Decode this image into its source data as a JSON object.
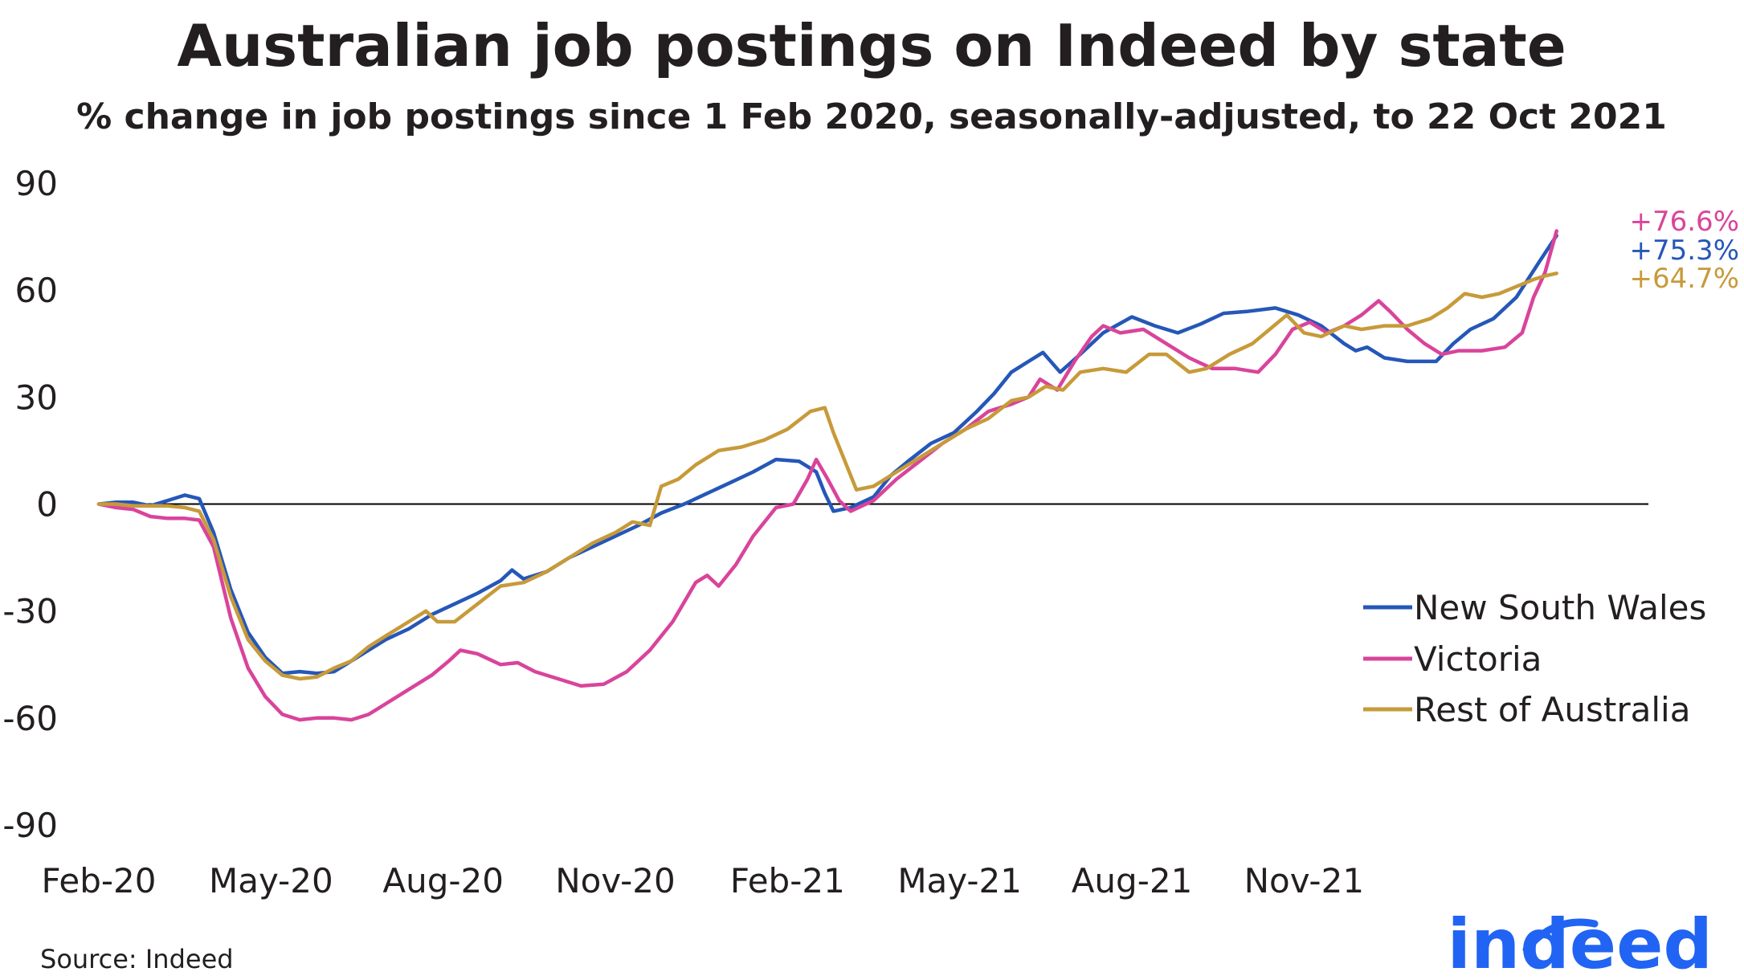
{
  "chart_data": {
    "type": "line",
    "title": "Australian job postings on Indeed by state",
    "subtitle": "% change in job postings since 1 Feb 2020, seasonally-adjusted, to 22 Oct 2021",
    "xlabel": "",
    "ylabel": "",
    "ylim": [
      -90,
      90
    ],
    "yticks": [
      90,
      60,
      30,
      0,
      -30,
      -60,
      -90
    ],
    "xticks": [
      "Feb-20",
      "May-20",
      "Aug-20",
      "Nov-20",
      "Feb-21",
      "May-21",
      "Aug-21",
      "Nov-21"
    ],
    "x_unit": "months since Feb-20",
    "legend_position": "lower-right",
    "series": [
      {
        "name": "New South Wales",
        "color": "#2557b8",
        "end_label": "+75.3%",
        "points": [
          [
            0,
            0
          ],
          [
            0.3,
            0.5
          ],
          [
            0.6,
            0.5
          ],
          [
            0.9,
            -0.5
          ],
          [
            1.2,
            1
          ],
          [
            1.5,
            2.5
          ],
          [
            1.75,
            1.5
          ],
          [
            2.0,
            -8
          ],
          [
            2.3,
            -24
          ],
          [
            2.6,
            -36
          ],
          [
            2.9,
            -43
          ],
          [
            3.2,
            -47.5
          ],
          [
            3.5,
            -47
          ],
          [
            3.8,
            -47.5
          ],
          [
            4.1,
            -47
          ],
          [
            4.4,
            -44
          ],
          [
            4.7,
            -41
          ],
          [
            5.0,
            -38
          ],
          [
            5.4,
            -35
          ],
          [
            5.8,
            -31
          ],
          [
            6.2,
            -28
          ],
          [
            6.6,
            -25
          ],
          [
            7.0,
            -21.5
          ],
          [
            7.2,
            -18.5
          ],
          [
            7.4,
            -21
          ],
          [
            7.8,
            -19
          ],
          [
            8.2,
            -15
          ],
          [
            8.6,
            -12
          ],
          [
            9.0,
            -9
          ],
          [
            9.4,
            -6
          ],
          [
            9.8,
            -2.5
          ],
          [
            10.2,
            0
          ],
          [
            10.6,
            3
          ],
          [
            11.0,
            6
          ],
          [
            11.4,
            9
          ],
          [
            11.8,
            12.5
          ],
          [
            12.2,
            12
          ],
          [
            12.5,
            9
          ],
          [
            12.65,
            3
          ],
          [
            12.8,
            -2
          ],
          [
            13.1,
            -1
          ],
          [
            13.5,
            2
          ],
          [
            13.8,
            8
          ],
          [
            14.1,
            12
          ],
          [
            14.5,
            17
          ],
          [
            14.9,
            20
          ],
          [
            15.3,
            26
          ],
          [
            15.6,
            31
          ],
          [
            15.9,
            37
          ],
          [
            16.2,
            40
          ],
          [
            16.45,
            42.5
          ],
          [
            16.75,
            37
          ],
          [
            17.1,
            42
          ],
          [
            17.5,
            48
          ],
          [
            18.0,
            52.5
          ],
          [
            18.4,
            50
          ],
          [
            18.8,
            48
          ],
          [
            19.2,
            50.5
          ],
          [
            19.6,
            53.5
          ],
          [
            20.0,
            54
          ],
          [
            20.5,
            55
          ],
          [
            20.9,
            53
          ],
          [
            21.3,
            50
          ],
          [
            21.7,
            45
          ],
          [
            21.9,
            43
          ],
          [
            22.1,
            44
          ],
          [
            22.4,
            41
          ],
          [
            22.8,
            40
          ],
          [
            23.3,
            40
          ],
          [
            23.6,
            45
          ],
          [
            23.9,
            49
          ],
          [
            24.3,
            52
          ],
          [
            24.7,
            58
          ],
          [
            25.1,
            68
          ],
          [
            25.4,
            75.3
          ]
        ]
      },
      {
        "name": "Victoria",
        "color": "#d9449b",
        "end_label": "+76.6%",
        "points": [
          [
            0,
            0
          ],
          [
            0.3,
            -1
          ],
          [
            0.6,
            -1.5
          ],
          [
            0.9,
            -3.5
          ],
          [
            1.2,
            -4
          ],
          [
            1.5,
            -4
          ],
          [
            1.75,
            -4.5
          ],
          [
            2.0,
            -12
          ],
          [
            2.3,
            -32
          ],
          [
            2.6,
            -46
          ],
          [
            2.9,
            -54
          ],
          [
            3.2,
            -59
          ],
          [
            3.5,
            -60.5
          ],
          [
            3.8,
            -60
          ],
          [
            4.1,
            -60
          ],
          [
            4.4,
            -60.5
          ],
          [
            4.7,
            -59
          ],
          [
            5.0,
            -56
          ],
          [
            5.4,
            -52
          ],
          [
            5.8,
            -48
          ],
          [
            6.1,
            -44
          ],
          [
            6.3,
            -41
          ],
          [
            6.6,
            -42
          ],
          [
            7.0,
            -45
          ],
          [
            7.3,
            -44.5
          ],
          [
            7.6,
            -47
          ],
          [
            8.0,
            -49
          ],
          [
            8.4,
            -51
          ],
          [
            8.8,
            -50.5
          ],
          [
            9.2,
            -47
          ],
          [
            9.6,
            -41
          ],
          [
            10.0,
            -33
          ],
          [
            10.4,
            -22
          ],
          [
            10.6,
            -20
          ],
          [
            10.8,
            -23
          ],
          [
            11.1,
            -17
          ],
          [
            11.4,
            -9
          ],
          [
            11.8,
            -1
          ],
          [
            12.1,
            0
          ],
          [
            12.35,
            7
          ],
          [
            12.5,
            12.5
          ],
          [
            12.7,
            7
          ],
          [
            12.9,
            1
          ],
          [
            13.1,
            -2
          ],
          [
            13.5,
            1
          ],
          [
            13.9,
            7
          ],
          [
            14.3,
            12
          ],
          [
            14.7,
            17
          ],
          [
            15.1,
            21
          ],
          [
            15.5,
            26
          ],
          [
            15.9,
            28
          ],
          [
            16.2,
            30
          ],
          [
            16.4,
            35
          ],
          [
            16.7,
            32
          ],
          [
            17.0,
            40
          ],
          [
            17.3,
            47
          ],
          [
            17.5,
            50
          ],
          [
            17.8,
            48
          ],
          [
            18.2,
            49
          ],
          [
            18.6,
            45
          ],
          [
            19.0,
            41
          ],
          [
            19.4,
            38
          ],
          [
            19.8,
            38
          ],
          [
            20.2,
            37
          ],
          [
            20.5,
            42
          ],
          [
            20.8,
            49
          ],
          [
            21.1,
            51
          ],
          [
            21.4,
            48
          ],
          [
            21.7,
            50
          ],
          [
            22.0,
            53
          ],
          [
            22.3,
            57
          ],
          [
            22.5,
            54
          ],
          [
            22.8,
            49
          ],
          [
            23.1,
            45
          ],
          [
            23.4,
            42
          ],
          [
            23.7,
            43
          ],
          [
            24.1,
            43
          ],
          [
            24.5,
            44
          ],
          [
            24.8,
            48
          ],
          [
            25.0,
            58
          ],
          [
            25.2,
            65
          ],
          [
            25.4,
            76.6
          ]
        ]
      },
      {
        "name": "Rest of Australia",
        "color": "#c79a3a",
        "end_label": "+64.7%",
        "points": [
          [
            0,
            0
          ],
          [
            0.3,
            0
          ],
          [
            0.6,
            -0.5
          ],
          [
            0.9,
            -0.5
          ],
          [
            1.2,
            -0.5
          ],
          [
            1.5,
            -1
          ],
          [
            1.75,
            -2
          ],
          [
            2.0,
            -10
          ],
          [
            2.3,
            -26
          ],
          [
            2.6,
            -38
          ],
          [
            2.9,
            -44
          ],
          [
            3.2,
            -48
          ],
          [
            3.5,
            -49
          ],
          [
            3.8,
            -48.5
          ],
          [
            4.1,
            -46
          ],
          [
            4.4,
            -44
          ],
          [
            4.7,
            -40
          ],
          [
            5.0,
            -37
          ],
          [
            5.4,
            -33
          ],
          [
            5.7,
            -30
          ],
          [
            5.9,
            -33
          ],
          [
            6.2,
            -33
          ],
          [
            6.6,
            -28
          ],
          [
            7.0,
            -23
          ],
          [
            7.4,
            -22
          ],
          [
            7.8,
            -19
          ],
          [
            8.2,
            -15
          ],
          [
            8.6,
            -11
          ],
          [
            9.0,
            -8
          ],
          [
            9.3,
            -5
          ],
          [
            9.6,
            -6
          ],
          [
            9.8,
            5
          ],
          [
            10.1,
            7
          ],
          [
            10.4,
            11
          ],
          [
            10.8,
            15
          ],
          [
            11.2,
            16
          ],
          [
            11.6,
            18
          ],
          [
            12.0,
            21
          ],
          [
            12.4,
            26
          ],
          [
            12.65,
            27
          ],
          [
            12.8,
            20
          ],
          [
            13.0,
            12
          ],
          [
            13.2,
            4
          ],
          [
            13.5,
            5
          ],
          [
            13.9,
            9
          ],
          [
            14.3,
            13
          ],
          [
            14.7,
            17
          ],
          [
            15.1,
            21
          ],
          [
            15.5,
            24
          ],
          [
            15.9,
            29
          ],
          [
            16.2,
            30
          ],
          [
            16.5,
            33
          ],
          [
            16.8,
            32
          ],
          [
            17.1,
            37
          ],
          [
            17.5,
            38
          ],
          [
            17.9,
            37
          ],
          [
            18.3,
            42
          ],
          [
            18.6,
            42
          ],
          [
            19.0,
            37
          ],
          [
            19.3,
            38
          ],
          [
            19.7,
            42
          ],
          [
            20.1,
            45
          ],
          [
            20.4,
            49
          ],
          [
            20.7,
            53
          ],
          [
            21.0,
            48
          ],
          [
            21.3,
            47
          ],
          [
            21.7,
            50
          ],
          [
            22.0,
            49
          ],
          [
            22.4,
            50
          ],
          [
            22.8,
            50
          ],
          [
            23.2,
            52
          ],
          [
            23.5,
            55
          ],
          [
            23.8,
            59
          ],
          [
            24.1,
            58
          ],
          [
            24.4,
            59
          ],
          [
            24.7,
            61
          ],
          [
            25.0,
            63
          ],
          [
            25.2,
            64
          ],
          [
            25.4,
            64.7
          ]
        ]
      }
    ]
  },
  "source": "Source: Indeed",
  "logo": "indeed"
}
